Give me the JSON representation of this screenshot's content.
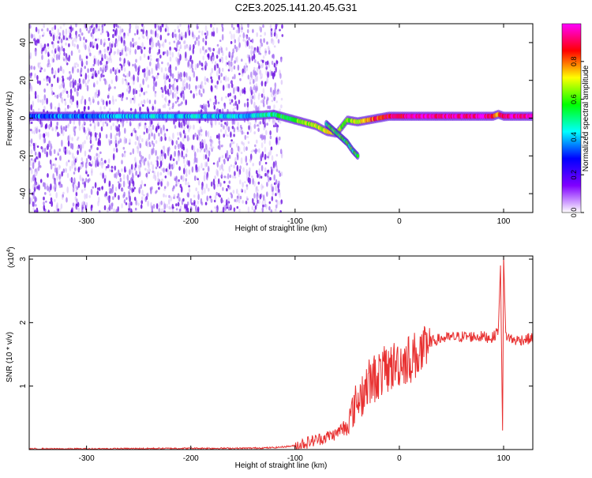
{
  "figure": {
    "title": "C2E3.2025.141.20.45.G31"
  },
  "chart_data": [
    {
      "type": "heatmap",
      "xlabel": "Height of straight line (km)",
      "ylabel": "Frequency (Hz)",
      "xlim": [
        -355,
        128
      ],
      "ylim": [
        -50,
        50
      ],
      "xticks": [
        -300,
        -200,
        -100,
        0,
        100
      ],
      "yticks": [
        -40,
        -20,
        0,
        20,
        40
      ],
      "colorbar": {
        "label": "Normalized spectral amplitude",
        "range": [
          0,
          1
        ],
        "ticks": [
          "0.0",
          "0.2",
          "0.4",
          "0.6",
          "0.8"
        ],
        "tick_values": [
          0.0,
          0.2,
          0.4,
          0.6,
          0.8
        ],
        "colors": [
          "#ffffff",
          "#8000ff",
          "#0000ff",
          "#00ffff",
          "#00ff00",
          "#ffff00",
          "#ff0000",
          "#ff00ff"
        ]
      },
      "noise_region_x": [
        -355,
        -112
      ],
      "ridge": {
        "x": [
          -355,
          -300,
          -250,
          -200,
          -150,
          -120,
          -100,
          -80,
          -70,
          -60,
          -50,
          -40,
          -30,
          -20,
          -10,
          0,
          20,
          50,
          80,
          90,
          95,
          100,
          128
        ],
        "y": [
          1,
          1,
          1,
          1,
          1,
          2,
          -1,
          -4,
          -7,
          -8,
          -1,
          -2,
          -1,
          0,
          1,
          1,
          1,
          1,
          1,
          1,
          2,
          1,
          1
        ],
        "strength": [
          0.35,
          0.35,
          0.4,
          0.4,
          0.4,
          0.5,
          0.6,
          0.7,
          0.7,
          0.7,
          0.6,
          0.7,
          0.8,
          0.85,
          0.9,
          0.9,
          0.95,
          0.95,
          0.95,
          0.9,
          0.7,
          0.95,
          0.95
        ]
      },
      "branch": {
        "x": [
          -70,
          -60,
          -50,
          -45,
          -40
        ],
        "y": [
          -3,
          -8,
          -13,
          -17,
          -20
        ]
      }
    },
    {
      "type": "line",
      "xlabel": "Height of straight line (km)",
      "ylabel": "SNR (10 * v/v)",
      "yscale_note": "(x10",
      "yscale_exp": "4",
      "exponent_superscript": ")",
      "xlim": [
        -355,
        128
      ],
      "ylim": [
        0,
        3.05
      ],
      "xticks": [
        -300,
        -200,
        -100,
        0,
        100
      ],
      "yticks": [
        1,
        2,
        3
      ],
      "color": "#e83030",
      "trend": {
        "x": [
          -355,
          -300,
          -200,
          -150,
          -120,
          -100,
          -80,
          -60,
          -50,
          -40,
          -30,
          -20,
          -10,
          0,
          10,
          20,
          30,
          40,
          60,
          80,
          90,
          95,
          97,
          99,
          100,
          102,
          110,
          128
        ],
        "y": [
          0.01,
          0.01,
          0.02,
          0.02,
          0.03,
          0.06,
          0.15,
          0.25,
          0.45,
          0.9,
          1.15,
          1.3,
          1.4,
          1.5,
          1.55,
          1.65,
          1.7,
          1.75,
          1.78,
          1.78,
          1.76,
          1.9,
          2.9,
          0.3,
          3.05,
          1.8,
          1.72,
          1.75
        ]
      }
    }
  ]
}
